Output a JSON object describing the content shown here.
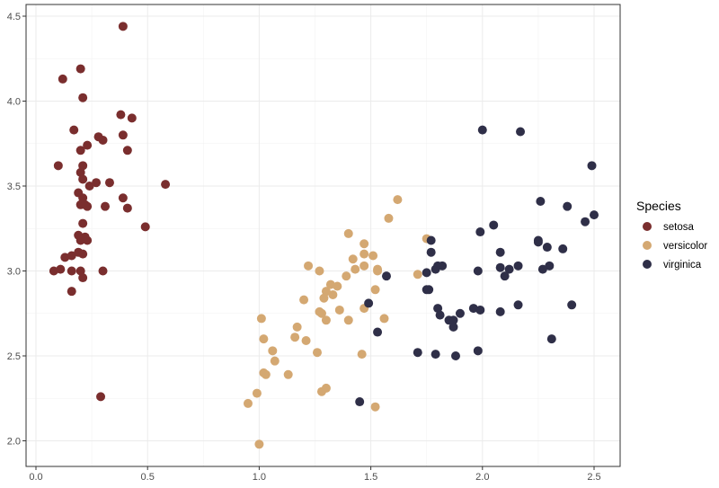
{
  "chart_data": {
    "type": "scatter",
    "title": "",
    "xlabel": "",
    "ylabel": "",
    "xlim": [
      -0.05,
      2.6
    ],
    "ylim": [
      1.9,
      4.55
    ],
    "x_ticks": [
      "0.0",
      "0.5",
      "1.0",
      "1.5",
      "2.0",
      "2.5"
    ],
    "x_tick_values": [
      0,
      0.5,
      1.0,
      1.5,
      2.0,
      2.5
    ],
    "y_ticks": [
      "2.0",
      "2.5",
      "3.0",
      "3.5",
      "4.0",
      "4.5"
    ],
    "y_tick_values": [
      2.0,
      2.5,
      3.0,
      3.5,
      4.0,
      4.5
    ],
    "grid": true,
    "legend": {
      "title": "Species",
      "placement": "right"
    },
    "series": [
      {
        "name": "setosa",
        "color": "#7a2e2e",
        "points": [
          [
            0.39,
            4.44
          ],
          [
            0.2,
            4.19
          ],
          [
            0.12,
            4.13
          ],
          [
            0.21,
            4.02
          ],
          [
            0.38,
            3.92
          ],
          [
            0.43,
            3.9
          ],
          [
            0.17,
            3.83
          ],
          [
            0.28,
            3.79
          ],
          [
            0.3,
            3.77
          ],
          [
            0.39,
            3.8
          ],
          [
            0.23,
            3.74
          ],
          [
            0.2,
            3.71
          ],
          [
            0.41,
            3.71
          ],
          [
            0.1,
            3.62
          ],
          [
            0.21,
            3.62
          ],
          [
            0.2,
            3.58
          ],
          [
            0.21,
            3.54
          ],
          [
            0.33,
            3.52
          ],
          [
            0.27,
            3.52
          ],
          [
            0.24,
            3.5
          ],
          [
            0.58,
            3.51
          ],
          [
            0.19,
            3.46
          ],
          [
            0.39,
            3.43
          ],
          [
            0.21,
            3.43
          ],
          [
            0.2,
            3.39
          ],
          [
            0.22,
            3.39
          ],
          [
            0.23,
            3.38
          ],
          [
            0.31,
            3.38
          ],
          [
            0.41,
            3.37
          ],
          [
            0.21,
            3.28
          ],
          [
            0.49,
            3.26
          ],
          [
            0.19,
            3.21
          ],
          [
            0.22,
            3.2
          ],
          [
            0.2,
            3.18
          ],
          [
            0.23,
            3.18
          ],
          [
            0.19,
            3.11
          ],
          [
            0.21,
            3.1
          ],
          [
            0.16,
            3.09
          ],
          [
            0.13,
            3.08
          ],
          [
            0.08,
            3.0
          ],
          [
            0.11,
            3.01
          ],
          [
            0.16,
            3.0
          ],
          [
            0.2,
            3.0
          ],
          [
            0.3,
            3.0
          ],
          [
            0.21,
            2.96
          ],
          [
            0.16,
            2.88
          ],
          [
            0.29,
            2.26
          ]
        ]
      },
      {
        "name": "versicolor",
        "color": "#d4a872",
        "points": [
          [
            1.62,
            3.42
          ],
          [
            1.58,
            3.31
          ],
          [
            1.75,
            3.19
          ],
          [
            1.4,
            3.22
          ],
          [
            1.47,
            3.1
          ],
          [
            1.47,
            3.16
          ],
          [
            1.51,
            3.09
          ],
          [
            1.42,
            3.07
          ],
          [
            1.47,
            3.03
          ],
          [
            1.53,
            3.01
          ],
          [
            1.43,
            3.01
          ],
          [
            1.22,
            3.03
          ],
          [
            1.27,
            3.0
          ],
          [
            1.71,
            2.98
          ],
          [
            1.53,
            3.0
          ],
          [
            1.39,
            2.97
          ],
          [
            1.35,
            2.91
          ],
          [
            1.32,
            2.92
          ],
          [
            1.52,
            2.89
          ],
          [
            1.3,
            2.88
          ],
          [
            1.33,
            2.86
          ],
          [
            1.29,
            2.84
          ],
          [
            1.2,
            2.83
          ],
          [
            1.47,
            2.78
          ],
          [
            1.36,
            2.77
          ],
          [
            1.27,
            2.76
          ],
          [
            1.28,
            2.75
          ],
          [
            1.56,
            2.72
          ],
          [
            1.4,
            2.71
          ],
          [
            1.3,
            2.71
          ],
          [
            1.01,
            2.72
          ],
          [
            1.17,
            2.67
          ],
          [
            1.16,
            2.61
          ],
          [
            1.02,
            2.6
          ],
          [
            1.21,
            2.59
          ],
          [
            1.06,
            2.53
          ],
          [
            1.26,
            2.52
          ],
          [
            1.07,
            2.47
          ],
          [
            1.46,
            2.51
          ],
          [
            1.02,
            2.4
          ],
          [
            1.03,
            2.39
          ],
          [
            1.13,
            2.39
          ],
          [
            1.3,
            2.31
          ],
          [
            1.28,
            2.29
          ],
          [
            0.99,
            2.28
          ],
          [
            0.95,
            2.22
          ],
          [
            1.52,
            2.2
          ],
          [
            1.0,
            1.98
          ]
        ]
      },
      {
        "name": "virginica",
        "color": "#2f2f48",
        "points": [
          [
            2.0,
            3.83
          ],
          [
            2.17,
            3.82
          ],
          [
            2.49,
            3.62
          ],
          [
            2.5,
            3.33
          ],
          [
            2.46,
            3.29
          ],
          [
            2.38,
            3.38
          ],
          [
            2.26,
            3.41
          ],
          [
            2.05,
            3.27
          ],
          [
            1.99,
            3.23
          ],
          [
            1.77,
            3.18
          ],
          [
            2.25,
            3.18
          ],
          [
            2.25,
            3.17
          ],
          [
            2.36,
            3.13
          ],
          [
            2.29,
            3.14
          ],
          [
            1.77,
            3.11
          ],
          [
            2.08,
            3.11
          ],
          [
            2.16,
            3.03
          ],
          [
            1.82,
            3.03
          ],
          [
            1.8,
            3.03
          ],
          [
            1.79,
            3.01
          ],
          [
            1.98,
            3.0
          ],
          [
            2.08,
            3.02
          ],
          [
            2.12,
            3.01
          ],
          [
            2.3,
            3.03
          ],
          [
            2.27,
            3.01
          ],
          [
            1.75,
            2.99
          ],
          [
            2.1,
            2.97
          ],
          [
            1.57,
            2.97
          ],
          [
            1.76,
            2.89
          ],
          [
            1.75,
            2.89
          ],
          [
            2.16,
            2.8
          ],
          [
            2.4,
            2.8
          ],
          [
            1.49,
            2.81
          ],
          [
            1.8,
            2.78
          ],
          [
            1.96,
            2.78
          ],
          [
            1.99,
            2.77
          ],
          [
            2.08,
            2.76
          ],
          [
            1.9,
            2.75
          ],
          [
            1.81,
            2.74
          ],
          [
            1.85,
            2.71
          ],
          [
            1.87,
            2.71
          ],
          [
            1.87,
            2.67
          ],
          [
            1.53,
            2.64
          ],
          [
            2.31,
            2.6
          ],
          [
            1.98,
            2.53
          ],
          [
            1.71,
            2.52
          ],
          [
            1.79,
            2.51
          ],
          [
            1.88,
            2.5
          ],
          [
            1.45,
            2.23
          ]
        ]
      }
    ]
  }
}
